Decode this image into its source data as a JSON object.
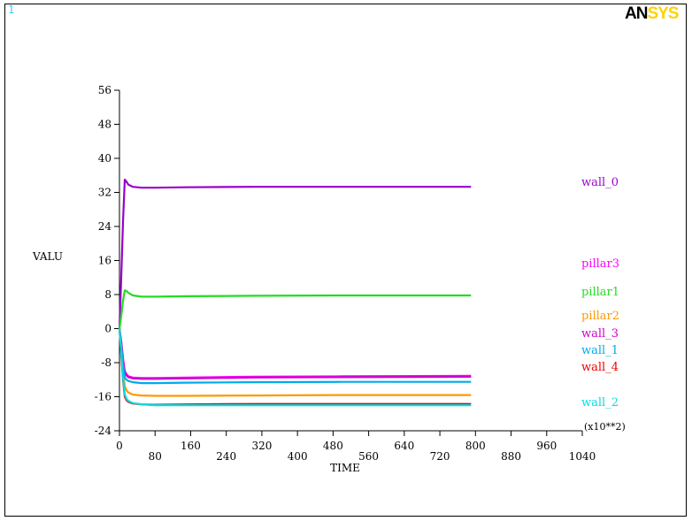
{
  "window_number": "1",
  "logo": {
    "part1": "AN",
    "part2": "SYS",
    "accent_color": "#ffd200"
  },
  "window_number_color": "#33ccff",
  "chart_data": {
    "type": "line",
    "xlabel": "TIME",
    "ylabel": "VALU",
    "x_multiplier": "(x10**2)",
    "xlim": [
      0,
      1040
    ],
    "ylim": [
      -24,
      56
    ],
    "x_ticks": [
      "0",
      "80",
      "160",
      "240",
      "320",
      "400",
      "480",
      "560",
      "640",
      "720",
      "800",
      "880",
      "960",
      "1040"
    ],
    "y_ticks": [
      "56",
      "48",
      "40",
      "32",
      "24",
      "16",
      "8",
      "0",
      "-8",
      "-16",
      "-24"
    ],
    "x": [
      0,
      4,
      8,
      12,
      16,
      20,
      30,
      50,
      80,
      150,
      300,
      500,
      790
    ],
    "series": [
      {
        "name": "wall_0",
        "color": "#9900cc",
        "values": [
          0,
          12,
          25,
          35,
          34.5,
          33.8,
          33.3,
          33.1,
          33.1,
          33.2,
          33.3,
          33.3,
          33.3
        ]
      },
      {
        "name": "pillar3",
        "color": "#ff00ff",
        "values": [
          0,
          -3,
          -7,
          -10,
          -10.7,
          -11.2,
          -11.5,
          -11.6,
          -11.6,
          -11.5,
          -11.3,
          -11.2,
          -11.1
        ]
      },
      {
        "name": "pillar1",
        "color": "#22dd22",
        "values": [
          0,
          3,
          6.5,
          9,
          8.8,
          8.4,
          7.8,
          7.5,
          7.5,
          7.6,
          7.7,
          7.8,
          7.8
        ]
      },
      {
        "name": "pillar2",
        "color": "#ff9900",
        "values": [
          0,
          -5,
          -10,
          -13.5,
          -14.5,
          -15,
          -15.5,
          -15.7,
          -15.8,
          -15.8,
          -15.7,
          -15.6,
          -15.6
        ]
      },
      {
        "name": "wall_3",
        "color": "#cc00cc",
        "values": [
          0,
          -3.2,
          -7.5,
          -10.3,
          -11,
          -11.4,
          -11.7,
          -11.8,
          -11.8,
          -11.7,
          -11.5,
          -11.4,
          -11.3
        ]
      },
      {
        "name": "wall_1",
        "color": "#00aaee",
        "values": [
          0,
          -4,
          -8.5,
          -11.5,
          -12,
          -12.3,
          -12.6,
          -12.8,
          -12.8,
          -12.7,
          -12.6,
          -12.5,
          -12.5
        ]
      },
      {
        "name": "wall_4",
        "color": "#ee0000",
        "values": [
          0,
          -6,
          -12,
          -16,
          -16.8,
          -17.2,
          -17.6,
          -17.8,
          -17.9,
          -17.8,
          -17.7,
          -17.7,
          -17.7
        ]
      },
      {
        "name": "wall_2",
        "color": "#00dddd",
        "values": [
          0,
          -5.5,
          -11.5,
          -15.5,
          -16.5,
          -17,
          -17.5,
          -17.8,
          -18,
          -18,
          -18,
          -18,
          -18
        ]
      }
    ]
  }
}
